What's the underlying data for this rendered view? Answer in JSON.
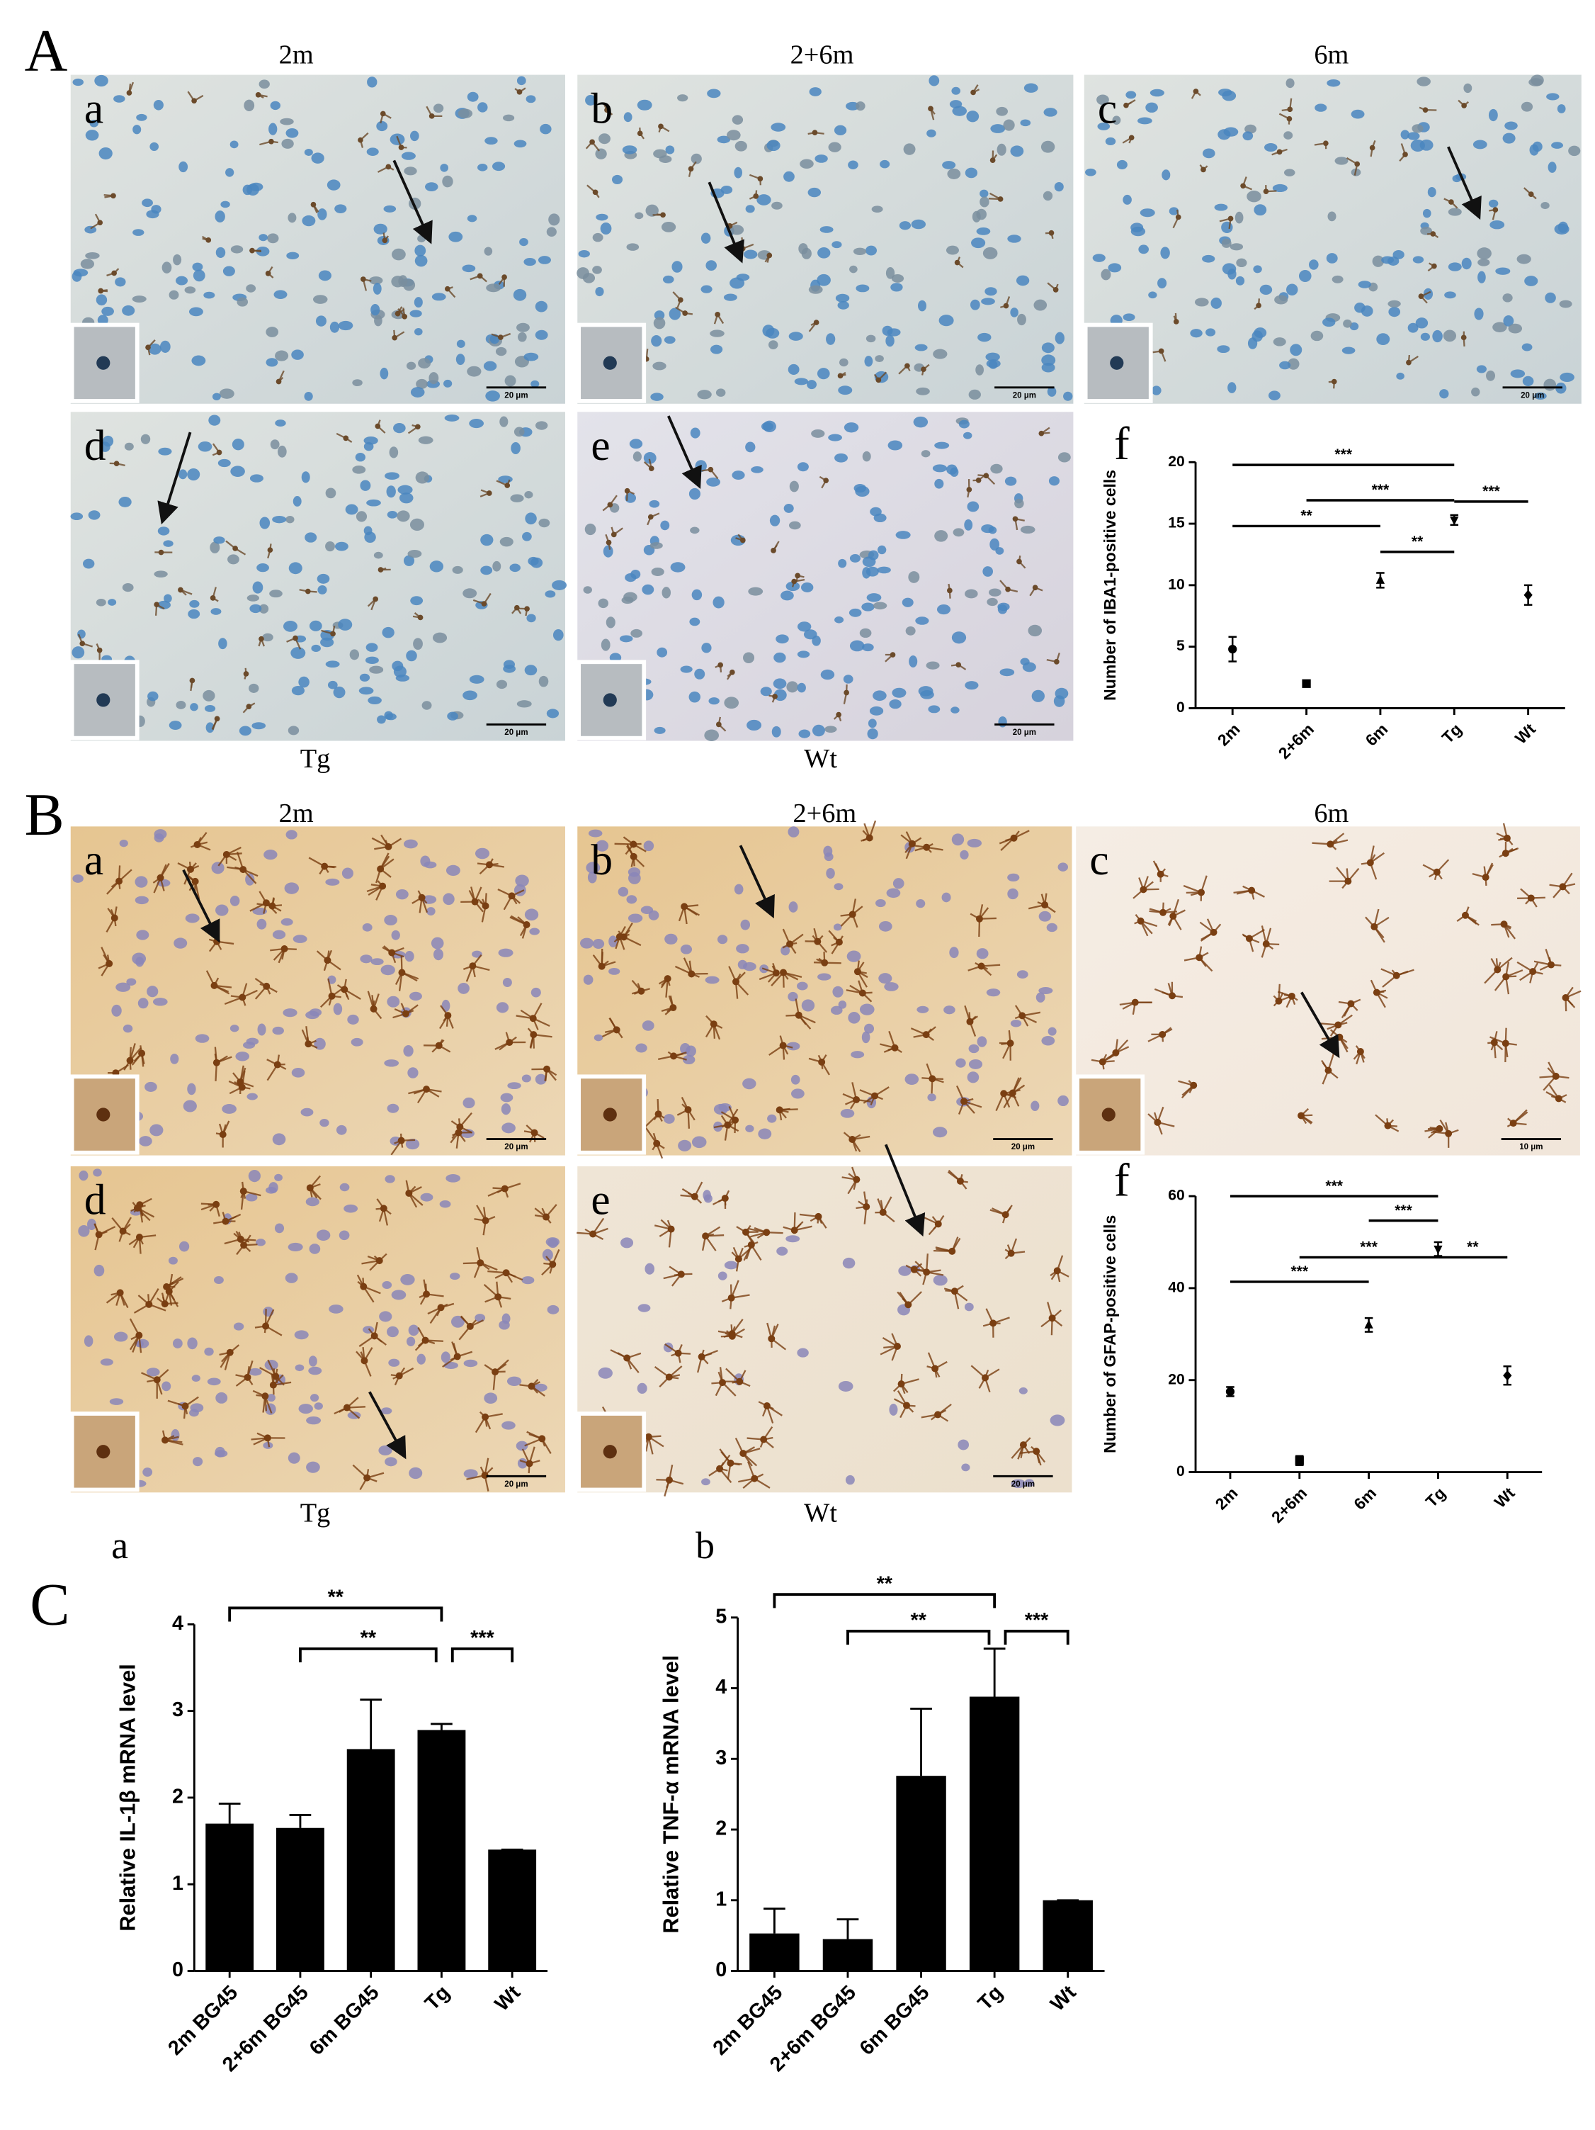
{
  "figure": {
    "A": {
      "letter": "A",
      "columns": [
        "2m",
        "2+6m",
        "6m"
      ],
      "images": [
        {
          "label": "a",
          "scale_bar": "20 μm"
        },
        {
          "label": "b",
          "scale_bar": "20 μm"
        },
        {
          "label": "c",
          "scale_bar": "20 μm"
        },
        {
          "label": "d",
          "scale_bar": "20 μm"
        },
        {
          "label": "e",
          "scale_bar": "20 μm"
        }
      ],
      "row_labels": [
        "Tg",
        "Wt"
      ]
    },
    "B": {
      "letter": "B",
      "columns": [
        "2m",
        "2+6m",
        "6m"
      ],
      "images": [
        {
          "label": "a",
          "scale_bar": "20 μm"
        },
        {
          "label": "b",
          "scale_bar": "20 μm"
        },
        {
          "label": "c",
          "scale_bar": "10 μm"
        },
        {
          "label": "d",
          "scale_bar": "20 μm"
        },
        {
          "label": "e",
          "scale_bar": "20 μm"
        }
      ],
      "row_labels": [
        "Tg",
        "Wt"
      ]
    },
    "C": {
      "letter": "C"
    }
  },
  "chart_data": [
    {
      "type": "scatter",
      "panel_label": "f",
      "y_label": "Number of IBA1-positive cells",
      "categories": [
        "2m",
        "2+6m",
        "6m",
        "Tg",
        "Wt"
      ],
      "series": [
        {
          "values": [
            4.8,
            2.0,
            10.4,
            15.3,
            9.2
          ],
          "errors": [
            1.0,
            0.2,
            0.6,
            0.4,
            0.8
          ],
          "color": "#000000",
          "markers": [
            "circle",
            "square",
            "triangle",
            "triangle-down",
            "diamond"
          ]
        }
      ],
      "ylim": [
        0,
        20
      ],
      "yticks": [
        0,
        5,
        10,
        15,
        20
      ],
      "bracket_style": "line",
      "significance": [
        {
          "label": "***",
          "from": "2m",
          "to": "Tg"
        },
        {
          "label": "***",
          "from": "2+6m",
          "to": "Tg"
        },
        {
          "label": "***",
          "from": "Tg",
          "to": "Wt"
        },
        {
          "label": "**",
          "from": "2m",
          "to": "6m"
        },
        {
          "label": "**",
          "from": "6m",
          "to": "Tg"
        }
      ]
    },
    {
      "type": "scatter",
      "panel_label": "f",
      "y_label": "Number of GFAP-positive cells",
      "categories": [
        "2m",
        "2+6m",
        "6m",
        "Tg",
        "Wt"
      ],
      "series": [
        {
          "values": [
            17.5,
            2.5,
            32,
            48.5,
            21
          ],
          "errors": [
            1,
            1,
            1.5,
            1.5,
            2
          ],
          "color": "#000000",
          "markers": [
            "circle",
            "square",
            "triangle",
            "triangle-down",
            "diamond"
          ]
        }
      ],
      "ylim": [
        0,
        60
      ],
      "yticks": [
        0,
        20,
        40,
        60
      ],
      "bracket_style": "line",
      "significance": [
        {
          "label": "***",
          "from": "2m",
          "to": "Tg"
        },
        {
          "label": "***",
          "from": "6m",
          "to": "Tg"
        },
        {
          "label": "***",
          "from": "2+6m",
          "to": "Tg"
        },
        {
          "label": "**",
          "from": "Tg",
          "to": "Wt"
        },
        {
          "label": "***",
          "from": "2m",
          "to": "6m"
        }
      ]
    },
    {
      "type": "bar",
      "panel_label": "a",
      "y_label": "Relative IL-1β mRNA level",
      "categories": [
        "2m BG45",
        "2+6m BG45",
        "6m BG45",
        "Tg",
        "Wt"
      ],
      "series": [
        {
          "values": [
            1.7,
            1.65,
            2.56,
            2.78,
            1.4
          ],
          "errors": [
            0.23,
            0.15,
            0.57,
            0.07,
            0
          ],
          "color": "#000000"
        }
      ],
      "ylim": [
        0,
        4
      ],
      "yticks": [
        0,
        1,
        2,
        3,
        4
      ],
      "bracket_style": "bracket",
      "significance": [
        {
          "label": "**",
          "from": "2m BG45",
          "to": "Tg"
        },
        {
          "label": "**",
          "from": "2+6m BG45",
          "to": "Tg"
        },
        {
          "label": "***",
          "from": "Tg",
          "to": "Wt"
        }
      ]
    },
    {
      "type": "bar",
      "panel_label": "b",
      "y_label": "Relative  TNF-α mRNA level",
      "categories": [
        "2m BG45",
        "2+6m BG45",
        "6m BG45",
        "Tg",
        "Wt"
      ],
      "series": [
        {
          "values": [
            0.53,
            0.45,
            2.76,
            3.88,
            1.0
          ],
          "errors": [
            0.35,
            0.28,
            0.95,
            0.68,
            0
          ],
          "color": "#000000"
        }
      ],
      "ylim": [
        0,
        5
      ],
      "yticks": [
        0,
        1,
        2,
        3,
        4,
        5
      ],
      "bracket_style": "bracket",
      "significance": [
        {
          "label": "**",
          "from": "2m BG45",
          "to": "Tg"
        },
        {
          "label": "**",
          "from": "2+6m BG45",
          "to": "Tg"
        },
        {
          "label": "***",
          "from": "Tg",
          "to": "Wt"
        }
      ]
    }
  ]
}
